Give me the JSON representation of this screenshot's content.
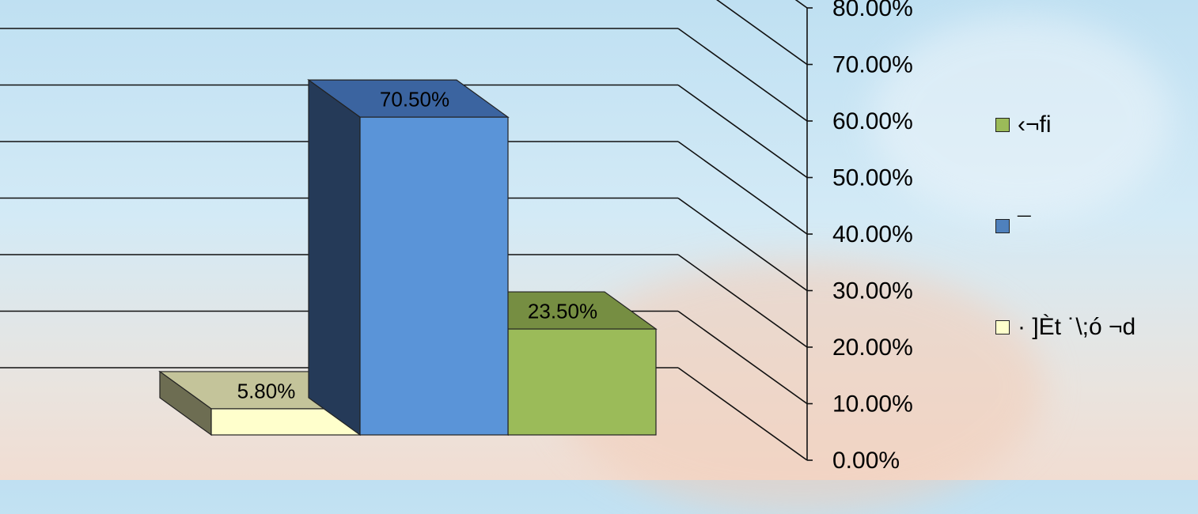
{
  "chart_data": {
    "type": "bar",
    "categories": [
      "· ]Èt ˙\\;ó ¬d",
      "¯",
      "‹¬fi"
    ],
    "values": [
      5.8,
      70.5,
      23.5
    ],
    "data_labels": [
      "5.80%",
      "70.50%",
      "23.50%"
    ],
    "ylim": [
      0,
      80
    ],
    "y_ticks": [
      0,
      10,
      20,
      30,
      40,
      50,
      60,
      70,
      80
    ],
    "y_tick_labels": [
      "0.00%",
      "10.00%",
      "20.00%",
      "30.00%",
      "40.00%",
      "50.00%",
      "60.00%",
      "70.00%",
      "80.00%"
    ],
    "grid": true,
    "three_d": true,
    "legend_position": "right",
    "legend": [
      {
        "label": "‹¬fi",
        "color": "#9bbb59"
      },
      {
        "label": "¯",
        "color": "#4f81bd"
      },
      {
        "label": "· ]Èt ˙\\;ó ¬d",
        "color": "#ffffcc"
      }
    ],
    "colors": {
      "bar1_front": "#ffffcc",
      "bar1_top": "#c4c49a",
      "bar1_side": "#6d6d52",
      "bar2_front": "#5a94d8",
      "bar2_top": "#3b64a0",
      "bar2_side": "#253a58",
      "bar3_front": "#9bbb59",
      "bar3_top": "#768e42",
      "bar3_side": "#4e6029"
    }
  }
}
